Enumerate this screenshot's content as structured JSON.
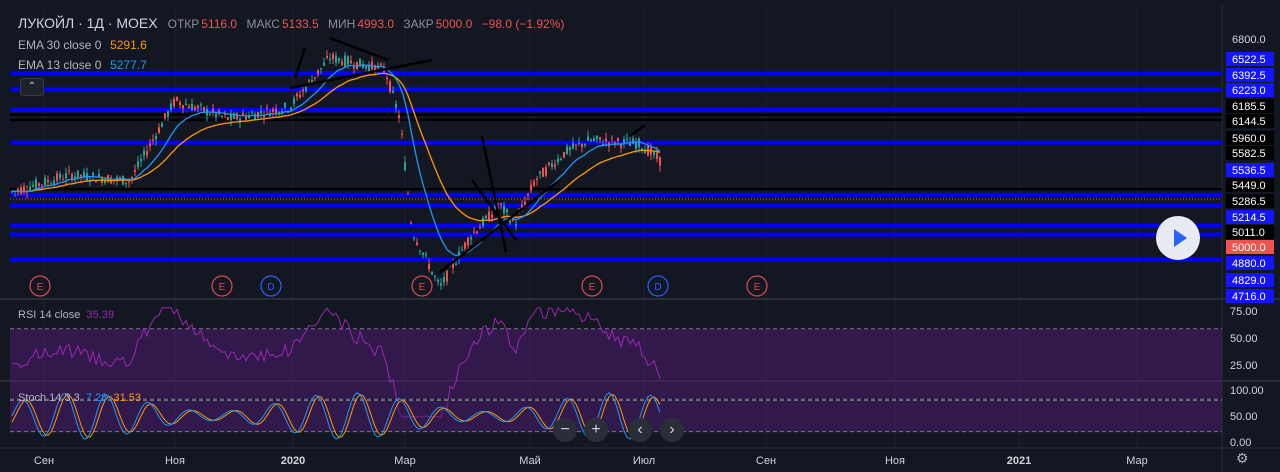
{
  "header": {
    "symbol": "ЛУКОЙЛ · 1Д · MOEX",
    "open_label": "ОТКР",
    "open_value": "5116.0",
    "high_label": "МАКС",
    "high_value": "5133.5",
    "low_label": "МИН",
    "low_value": "4993.0",
    "close_label": "ЗАКР",
    "close_value": "5000.0",
    "change": "−98.0 (−1.92%)"
  },
  "ema30": {
    "label": "EMA 30 close 0",
    "value": "5291.6",
    "color": "#ff9800"
  },
  "ema13": {
    "label": "EMA 13 close 0",
    "value": "5277.7",
    "color": "#2196f3"
  },
  "colors": {
    "background": "#131722",
    "up": "#26a69a",
    "down": "#ef5350",
    "level_blue": "#0000ff",
    "level_black": "#000000",
    "rsi": "#9c27b0",
    "stoch_k": "#2196f3",
    "stoch_d": "#ff9800",
    "band": "#4a1e6e"
  },
  "controls": {
    "collapse_icon": "⌃",
    "zoom_out": "−",
    "zoom_in": "+",
    "prev": "‹",
    "next": "›",
    "settings_icon": "gear-icon",
    "play_icon": "play-icon"
  },
  "chart_data": [
    {
      "type": "candlestick",
      "title": "ЛУКОЙЛ · 1Д · MOEX",
      "y_axis_labels": [
        "6800.0",
        "6522.5",
        "6392.5",
        "6223.0",
        "6185.5",
        "6144.5",
        "5960.0",
        "5582.5",
        "5536.5",
        "5449.0",
        "5286.5",
        "5214.5",
        "5011.0",
        "5000.0",
        "4880.0",
        "4829.0",
        "4716.0"
      ],
      "x_axis_labels": [
        "Сен",
        "Ноя",
        "2020",
        "Мар",
        "Май",
        "Июл",
        "Сен",
        "Ноя",
        "2021",
        "Мар"
      ],
      "price_path": [
        [
          "Сен",
          5560
        ],
        [
          "Сен",
          5700
        ],
        [
          "Ноя",
          5650
        ],
        [
          "Ноя",
          6300
        ],
        [
          "Ноя",
          6150
        ],
        [
          "2020",
          6250
        ],
        [
          "2020",
          6650
        ],
        [
          "Мар",
          6550
        ],
        [
          "Мар",
          6150
        ],
        [
          "Мар",
          5250
        ],
        [
          "Мар",
          4780
        ],
        [
          "Мар",
          5200
        ],
        [
          "Май",
          5450
        ],
        [
          "Май",
          5300
        ],
        [
          "Май",
          5650
        ],
        [
          "Июл",
          5880
        ],
        [
          "Июл",
          5980
        ],
        [
          "Июл",
          5950
        ],
        [
          "Июл",
          5800
        ]
      ],
      "last_close": 5000.0,
      "horizontal_levels_blue": [
        6522.5,
        6392.5,
        6223.0,
        5960.0,
        5536.5,
        5449.0,
        5286.5,
        5214.5,
        5011.0
      ],
      "horizontal_levels_black": [
        6185.5,
        6144.5,
        5960.0,
        5582.5
      ],
      "series": [
        {
          "name": "EMA 30 close 0",
          "last": 5291.6
        },
        {
          "name": "EMA 13 close 0",
          "last": 5277.7
        }
      ],
      "event_markers": [
        {
          "label": "E",
          "near": "Сен"
        },
        {
          "label": "E",
          "near": "Ноя"
        },
        {
          "label": "D",
          "near": "Ноя"
        },
        {
          "label": "E",
          "near": "Мар"
        },
        {
          "label": "E",
          "near": "Июл"
        },
        {
          "label": "D",
          "near": "Июл"
        },
        {
          "label": "E",
          "near": "Сен"
        }
      ]
    },
    {
      "type": "line",
      "title": "RSI 14 close",
      "last_value": "35.39",
      "y_axis_labels": [
        "75.00",
        "50.00",
        "25.00"
      ],
      "bands": [
        30,
        70
      ]
    },
    {
      "type": "line",
      "title": "Stoch 14 3 3",
      "k_value": "7.28",
      "d_value": "31.53",
      "y_axis_labels": [
        "100.00",
        "50.00",
        "0.00"
      ],
      "bands": [
        20,
        80
      ]
    }
  ]
}
